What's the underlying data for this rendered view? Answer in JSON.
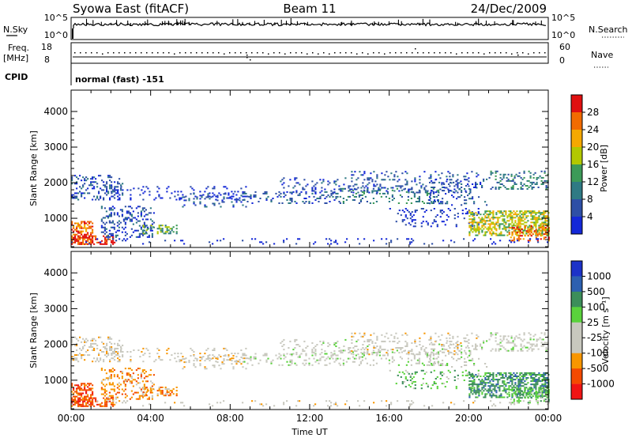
{
  "header": {
    "station": "Syowa East (fitACF)",
    "beam": "Beam 11",
    "date": "24/Dec/2009"
  },
  "params": {
    "nsky_label": "N.Sky",
    "nsky_ticks": [
      "10^5",
      "10^0"
    ],
    "nsearch_label": "N.Search",
    "nsearch_ticks": [
      "10^5",
      "10^0"
    ],
    "freq_label_1": "Freq.",
    "freq_label_2": "[MHz]",
    "freq_ticks": [
      "18",
      "8"
    ],
    "nave_label": "Nave",
    "nave_ticks": [
      "60",
      "0"
    ],
    "cpid_label": "CPID",
    "cpid_text": "normal (fast) -151"
  },
  "colors": {
    "power_scale": [
      "#1428d8",
      "#2e4fa6",
      "#2f7a84",
      "#3c9a58",
      "#b2c800",
      "#f5a800",
      "#f26b00",
      "#e01010"
    ],
    "velocity_scale": [
      "#f01414",
      "#f44a00",
      "#f89600",
      "#c8c8be",
      "#c8c8be",
      "#5ad23c",
      "#3c8e5a",
      "#2d60b0",
      "#1c32c8"
    ]
  },
  "chart_data": [
    {
      "type": "heatmap",
      "panel": "power",
      "ylabel": "Slant Range [km]",
      "xlabel": "",
      "x_ticks": [
        "00:00",
        "04:00",
        "08:00",
        "12:00",
        "16:00",
        "20:00",
        "00:00"
      ],
      "xlim_hours": [
        0,
        24
      ],
      "y_ticks": [
        "4000",
        "3000",
        "2000",
        "1000"
      ],
      "ylim": [
        180,
        4600
      ],
      "colorbar_label": "Power [dB]",
      "colorbar_ticks": [
        "28",
        "24",
        "20",
        "16",
        "12",
        "8",
        "4"
      ],
      "colorbar_range": [
        0,
        32
      ]
    },
    {
      "type": "heatmap",
      "panel": "velocity",
      "ylabel": "Slant Range [km]",
      "xlabel": "Time UT",
      "x_ticks": [
        "00:00",
        "04:00",
        "08:00",
        "12:00",
        "16:00",
        "20:00",
        "00:00"
      ],
      "xlim_hours": [
        0,
        24
      ],
      "y_ticks": [
        "4000",
        "3000",
        "2000",
        "1000"
      ],
      "ylim": [
        180,
        4600
      ],
      "colorbar_label": "Velocity [m s⁻¹]",
      "colorbar_ticks": [
        "1000",
        "500",
        "100",
        "25",
        "-25",
        "-100",
        "-500",
        "-1000"
      ]
    }
  ]
}
